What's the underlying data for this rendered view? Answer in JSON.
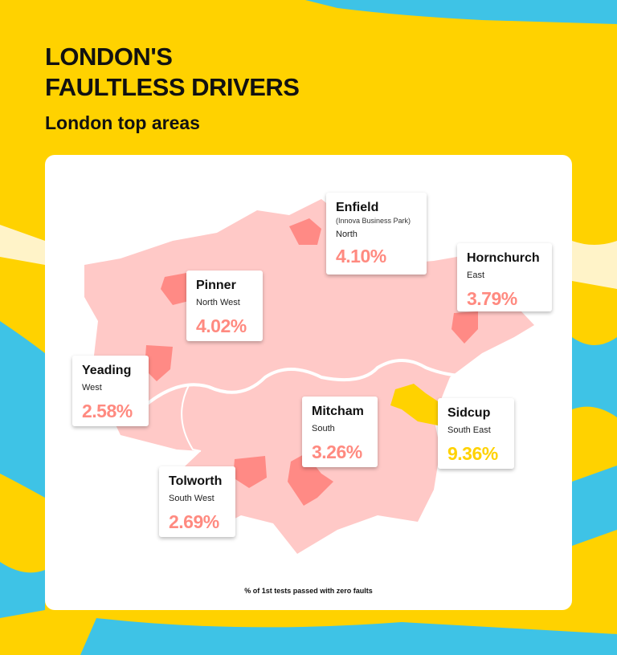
{
  "title_line1": "LONDON'S",
  "title_line2": "FAULTLESS DRIVERS",
  "subtitle": "London top areas",
  "colors": {
    "background": "#FFD200",
    "accent_blue": "#3EC3E6",
    "map_base": "#FFC9C7",
    "map_highlight": "#FF8A85",
    "value_color": "#FF8A80",
    "top_highlight": "#FFD200"
  },
  "areas": [
    {
      "name": "Enfield",
      "note": "(Innova Business Park)",
      "region": "North",
      "value": "4.10%"
    },
    {
      "name": "Hornchurch",
      "region": "East",
      "value": "3.79%"
    },
    {
      "name": "Pinner",
      "region": "North West",
      "value": "4.02%"
    },
    {
      "name": "Yeading",
      "region": "West",
      "value": "2.58%"
    },
    {
      "name": "Mitcham",
      "region": "South",
      "value": "3.26%"
    },
    {
      "name": "Sidcup",
      "region": "South East",
      "value": "9.36%"
    },
    {
      "name": "Tolworth",
      "region": "South West",
      "value": "2.69%"
    }
  ],
  "footnote": "% of 1st tests passed with zero faults"
}
